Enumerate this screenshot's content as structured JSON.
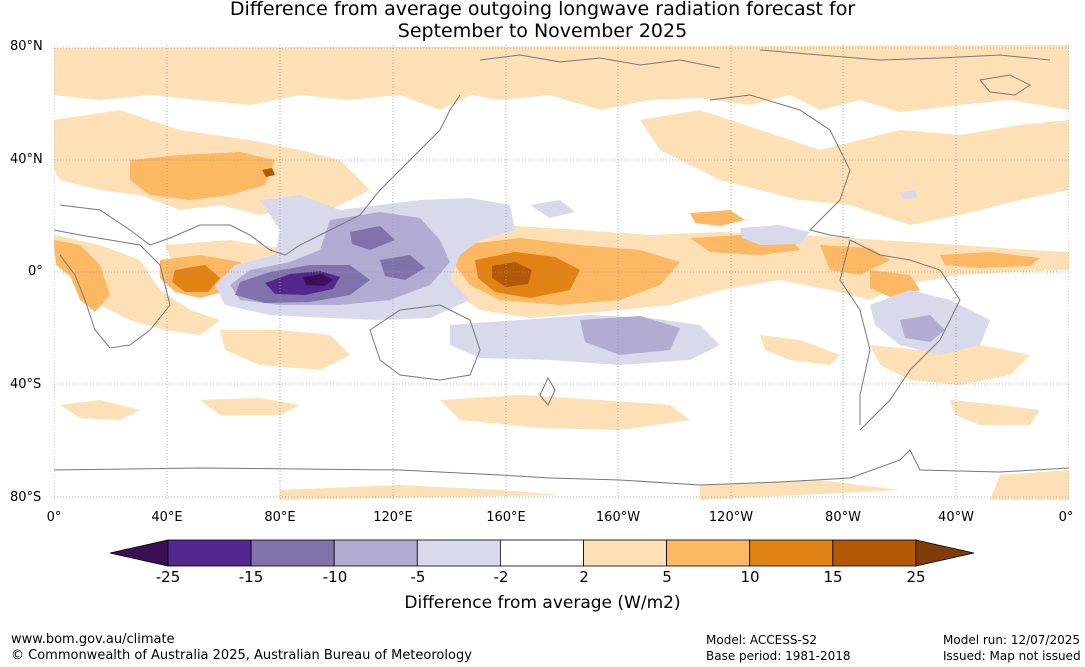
{
  "title_line1": "Difference from average outgoing longwave radiation forecast for",
  "title_line2": "September to November 2025",
  "lat_labels": [
    "80°N",
    "40°N",
    "0°",
    "40°S",
    "80°S"
  ],
  "lon_labels": [
    "0°",
    "40°E",
    "80°E",
    "120°E",
    "160°E",
    "160°W",
    "120°W",
    "80°W",
    "40°W",
    "0°"
  ],
  "colorbar": {
    "ticks": [
      "-25",
      "-15",
      "-10",
      "-5",
      "-2",
      "2",
      "5",
      "10",
      "15",
      "25"
    ],
    "colors": [
      "#3b0f54",
      "#54278f",
      "#8073ac",
      "#b2abd2",
      "#d8daeb",
      "#ffffff",
      "#fee0b6",
      "#fdb863",
      "#e08214",
      "#b35806",
      "#7f3b08"
    ],
    "label": "Difference from average (W/m2)"
  },
  "footer": {
    "url": "www.bom.gov.au/climate",
    "copyright": "© Commonwealth of Australia 2025, Australian Bureau of Meteorology",
    "model": "Model: ACCESS-S2",
    "base_period": "Base period: 1981-2018",
    "model_run": "Model run: 12/07/2025",
    "issued": "Issued: Map not issued"
  }
}
